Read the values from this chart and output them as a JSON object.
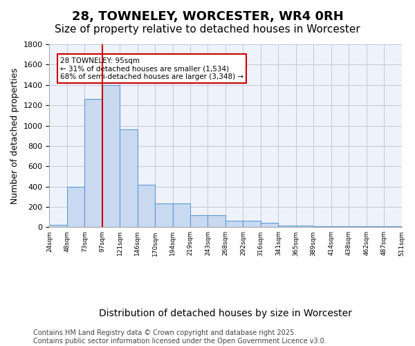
{
  "title": "28, TOWNELEY, WORCESTER, WR4 0RH",
  "subtitle": "Size of property relative to detached houses in Worcester",
  "xlabel": "Distribution of detached houses by size in Worcester",
  "ylabel": "Number of detached properties",
  "bar_values": [
    25,
    400,
    1265,
    1400,
    960,
    415,
    235,
    235,
    120,
    120,
    65,
    65,
    42,
    15,
    15,
    10,
    10,
    10,
    10,
    10
  ],
  "categories": [
    "24sqm",
    "48sqm",
    "73sqm",
    "97sqm",
    "121sqm",
    "146sqm",
    "170sqm",
    "194sqm",
    "219sqm",
    "243sqm",
    "268sqm",
    "292sqm",
    "316sqm",
    "341sqm",
    "365sqm",
    "389sqm",
    "414sqm",
    "438sqm",
    "462sqm",
    "487sqm",
    "511sqm"
  ],
  "bar_color": "#c9d9f0",
  "bar_edge_color": "#5b9bd5",
  "grid_color": "#c0c8d8",
  "background_color": "#eef2fa",
  "vline_x": 2.5,
  "vline_color": "#cc0000",
  "annotation_text": "28 TOWNELEY: 95sqm\n← 31% of detached houses are smaller (1,534)\n68% of semi-detached houses are larger (3,348) →",
  "annotation_box_color": "#cc0000",
  "ylim": [
    0,
    1800
  ],
  "yticks": [
    0,
    200,
    400,
    600,
    800,
    1000,
    1200,
    1400,
    1600,
    1800
  ],
  "footer_text": "Contains HM Land Registry data © Crown copyright and database right 2025.\nContains public sector information licensed under the Open Government Licence v3.0.",
  "title_fontsize": 13,
  "subtitle_fontsize": 11,
  "xlabel_fontsize": 10,
  "ylabel_fontsize": 9,
  "footer_fontsize": 7
}
